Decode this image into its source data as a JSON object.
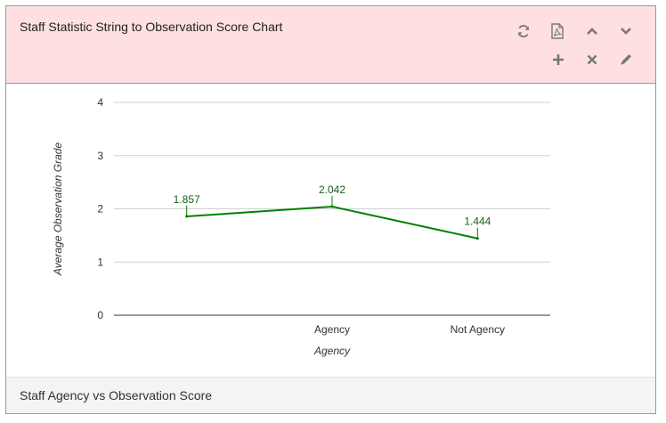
{
  "panel": {
    "title": "Staff Statistic String to Observation Score Chart",
    "footer": "Staff Agency vs Observation Score",
    "header_background": "#fde0df",
    "border_color": "#7aa0c8",
    "tools": [
      {
        "name": "refresh-icon"
      },
      {
        "name": "pdf-icon"
      },
      {
        "name": "chevron-up-icon"
      },
      {
        "name": "chevron-down-icon"
      },
      {
        "name": "plus-icon"
      },
      {
        "name": "close-icon"
      },
      {
        "name": "pencil-icon"
      }
    ]
  },
  "chart_data": {
    "type": "line",
    "categories": [
      "",
      "Agency",
      "Not Agency"
    ],
    "values": [
      1.857,
      2.042,
      1.444
    ],
    "data_labels": [
      "1.857",
      "2.042",
      "1.444"
    ],
    "xlabel": "Agency",
    "ylabel": "Average Observation Grade",
    "ylim": [
      0,
      4
    ],
    "yticks": [
      "0",
      "1",
      "2",
      "3",
      "4"
    ],
    "grid": true,
    "line_color": "#008000"
  }
}
